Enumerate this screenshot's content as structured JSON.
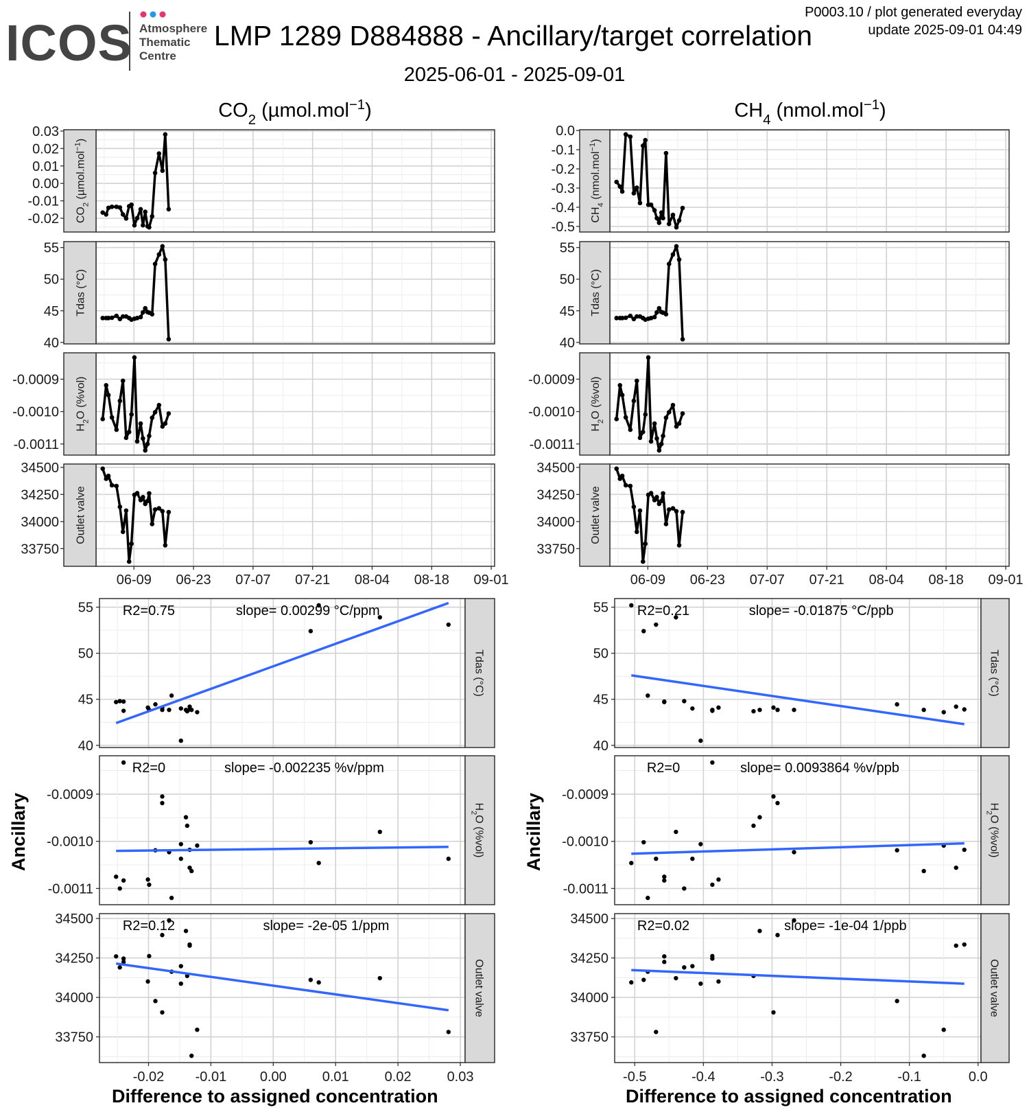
{
  "header": {
    "logo_text": "ICOS",
    "logo_sub": [
      "Atmosphere",
      "Thematic",
      "Centre"
    ],
    "title": "LMP 1289 D884888 - Ancillary/target correlation",
    "subtitle": "2025-06-01 - 2025-09-01",
    "meta_line1": "P0003.10 / plot generated everyday",
    "meta_line2": "update  2025-09-01 04:49"
  },
  "colors": {
    "logo_text": "#444444",
    "logo_dot_pink": "#e8336f",
    "logo_dot_blue": "#1e9be9",
    "regression_line": "#3366ff",
    "points": "#000000",
    "strip_fill": "#d9d9d9",
    "grid_major": "#d2d2d2",
    "grid_minor": "#ececec"
  },
  "y_axis_title": "Ancillary",
  "x_axis_title": "Difference to assigned concentration",
  "chart_data": {
    "type": "line+scatter",
    "grid": true,
    "x": [
      "2025-06-01T15:36",
      "2025-06-02T11:00",
      "2025-06-03T00:00",
      "2025-06-03T19:30",
      "2025-06-04T21:20",
      "2025-06-05T16:48",
      "2025-06-06T09:50",
      "2025-06-07T03:50",
      "2025-06-07T20:38",
      "2025-06-08T09:50",
      "2025-06-09T02:38",
      "2025-06-09T18:14",
      "2025-06-10T13:41",
      "2025-06-11T02:38",
      "2025-06-11T15:36",
      "2025-06-12T04:34",
      "2025-06-12T13:41",
      "2025-06-13T06:29",
      "2025-06-13T23:17",
      "2025-06-14T21:22",
      "2025-06-15T16:48",
      "2025-06-16T08:24",
      "2025-06-17T03:50"
    ],
    "xlim": [
      "2025-05-31T02:00",
      "2025-09-01T19:00"
    ],
    "x_ticks": [
      "06-09",
      "06-23",
      "07-07",
      "07-21",
      "08-04",
      "08-18",
      "09-01"
    ],
    "series": {
      "co2": [
        -0.0167,
        -0.0178,
        -0.014,
        -0.0134,
        -0.0134,
        -0.0138,
        -0.0178,
        -0.0201,
        -0.0131,
        -0.0122,
        -0.024,
        -0.0199,
        -0.0148,
        -0.024,
        -0.0163,
        -0.0246,
        -0.0252,
        -0.0189,
        0.006,
        0.0171,
        0.0073,
        0.0281,
        -0.0148
      ],
      "ch4": [
        -0.268,
        -0.292,
        -0.318,
        -0.02,
        -0.032,
        -0.327,
        -0.298,
        -0.378,
        -0.079,
        -0.05,
        -0.387,
        -0.387,
        -0.416,
        -0.457,
        -0.481,
        -0.428,
        -0.457,
        -0.118,
        -0.487,
        -0.44,
        -0.505,
        -0.469,
        -0.404
      ],
      "tdas": [
        43.85,
        43.85,
        43.85,
        43.9,
        44.2,
        43.7,
        44.1,
        44.1,
        43.85,
        43.6,
        43.75,
        43.85,
        44.0,
        44.75,
        45.4,
        44.8,
        44.7,
        44.45,
        52.4,
        53.9,
        55.2,
        53.1,
        40.5
      ],
      "h2o": [
        -0.001023,
        -0.000919,
        -0.000949,
        -0.001018,
        -0.001056,
        -0.000967,
        -0.000905,
        -0.001081,
        -0.001063,
        -0.001009,
        -0.000833,
        -0.001092,
        -0.001037,
        -0.001083,
        -0.00112,
        -0.0011,
        -0.001075,
        -0.001019,
        -0.001002,
        -0.00098,
        -0.001046,
        -0.001037,
        -0.001006
      ],
      "outlet": [
        34488,
        34395,
        34421,
        34335,
        34328,
        34136,
        33905,
        34101,
        33630,
        33795,
        34246,
        34262,
        34198,
        34225,
        34163,
        34190,
        34260,
        33977,
        34111,
        34122,
        34095,
        33781,
        34087
      ]
    },
    "columns": [
      {
        "target": "co2",
        "title": [
          {
            "t": "CO"
          },
          {
            "t": "2",
            "s": "sub"
          },
          {
            "t": " (µmol.mol"
          },
          {
            "t": "−1",
            "s": "sup"
          },
          {
            "t": ")"
          }
        ],
        "time_panels": [
          {
            "series": "co2",
            "strip": [
              {
                "t": "CO"
              },
              {
                "t": "2",
                "s": "sub"
              },
              {
                "t": " (µmol.mol"
              },
              {
                "t": "−1",
                "s": "sup"
              },
              {
                "t": ")"
              }
            ],
            "y_ticks": [
              "0.03",
              "0.02",
              "0.01",
              "0.00",
              "-0.01",
              "-0.02"
            ]
          },
          {
            "series": "tdas",
            "strip": [
              {
                "t": "Tdas (°C)"
              }
            ],
            "y_ticks": [
              "55",
              "50",
              "45",
              "40"
            ]
          },
          {
            "series": "h2o",
            "strip": [
              {
                "t": "H"
              },
              {
                "t": "2",
                "s": "sub"
              },
              {
                "t": "O (%vol)"
              }
            ],
            "y_ticks": [
              "-0.0009",
              "-0.0010",
              "-0.0011"
            ]
          },
          {
            "series": "outlet",
            "strip": [
              {
                "t": "Outlet valve"
              }
            ],
            "y_ticks": [
              "34500",
              "34250",
              "34000",
              "33750"
            ]
          }
        ],
        "scatter_x_ticks": [
          "-0.02",
          "-0.01",
          "0.00",
          "0.01",
          "0.02",
          "0.03"
        ],
        "scatter_panels": [
          {
            "series": "tdas",
            "strip": [
              {
                "t": "Tdas (°C)"
              }
            ],
            "y_ticks": [
              "55",
              "50",
              "45",
              "40"
            ],
            "r2": "R2=0.75",
            "slope": "slope= 0.00299 °C/ppm"
          },
          {
            "series": "h2o",
            "strip": [
              {
                "t": "H"
              },
              {
                "t": "2",
                "s": "sub"
              },
              {
                "t": "O (%vol)"
              }
            ],
            "y_ticks": [
              "-0.0009",
              "-0.0010",
              "-0.0011"
            ],
            "r2": "R2=0",
            "slope": "slope= -0.002235 %v/ppm"
          },
          {
            "series": "outlet",
            "strip": [
              {
                "t": "Outlet valve"
              }
            ],
            "y_ticks": [
              "34500",
              "34250",
              "34000",
              "33750"
            ],
            "r2": "R2=0.12",
            "slope": "slope= -2e-05 1/ppm"
          }
        ]
      },
      {
        "target": "ch4",
        "title": [
          {
            "t": "CH"
          },
          {
            "t": "4",
            "s": "sub"
          },
          {
            "t": " (nmol.mol"
          },
          {
            "t": "−1",
            "s": "sup"
          },
          {
            "t": ")"
          }
        ],
        "time_panels": [
          {
            "series": "ch4",
            "strip": [
              {
                "t": "CH"
              },
              {
                "t": "4",
                "s": "sub"
              },
              {
                "t": " (nmol.mol"
              },
              {
                "t": "−1",
                "s": "sup"
              },
              {
                "t": ")"
              }
            ],
            "y_ticks": [
              "0.0",
              "-0.1",
              "-0.2",
              "-0.3",
              "-0.4",
              "-0.5"
            ]
          },
          {
            "series": "tdas",
            "strip": [
              {
                "t": "Tdas (°C)"
              }
            ],
            "y_ticks": [
              "55",
              "50",
              "45",
              "40"
            ]
          },
          {
            "series": "h2o",
            "strip": [
              {
                "t": "H"
              },
              {
                "t": "2",
                "s": "sub"
              },
              {
                "t": "O (%vol)"
              }
            ],
            "y_ticks": [
              "-0.0009",
              "-0.0010",
              "-0.0011"
            ]
          },
          {
            "series": "outlet",
            "strip": [
              {
                "t": "Outlet valve"
              }
            ],
            "y_ticks": [
              "34500",
              "34250",
              "34000",
              "33750"
            ]
          }
        ],
        "scatter_x_ticks": [
          "-0.5",
          "-0.4",
          "-0.3",
          "-0.2",
          "-0.1",
          "0.0"
        ],
        "scatter_panels": [
          {
            "series": "tdas",
            "strip": [
              {
                "t": "Tdas (°C)"
              }
            ],
            "y_ticks": [
              "55",
              "50",
              "45",
              "40"
            ],
            "r2": "R2=0.21",
            "slope": "slope= -0.01875 °C/ppb"
          },
          {
            "series": "h2o",
            "strip": [
              {
                "t": "H"
              },
              {
                "t": "2",
                "s": "sub"
              },
              {
                "t": "O (%vol)"
              }
            ],
            "y_ticks": [
              "-0.0009",
              "-0.0010",
              "-0.0011"
            ],
            "r2": "R2=0",
            "slope": "slope= 0.0093864 %v/ppb"
          },
          {
            "series": "outlet",
            "strip": [
              {
                "t": "Outlet valve"
              }
            ],
            "y_ticks": [
              "34500",
              "34250",
              "34000",
              "33750"
            ],
            "r2": "R2=0.02",
            "slope": "slope= -1e-04 1/ppb"
          }
        ]
      }
    ]
  }
}
